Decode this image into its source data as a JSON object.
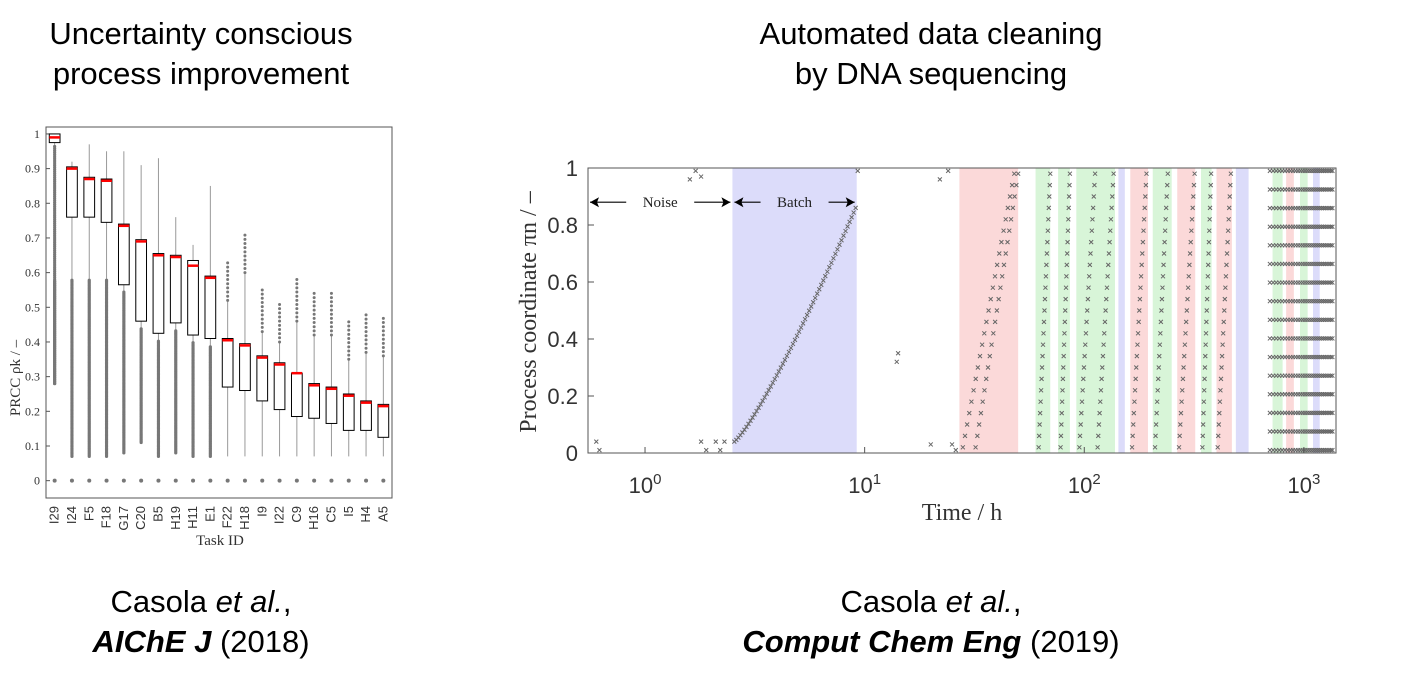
{
  "left": {
    "title_line1": "Uncertainty conscious",
    "title_line2": "process improvement",
    "citation": {
      "authors": "Casola",
      "etal": "et al.",
      "comma": ",",
      "journal": "AIChE J",
      "year": "(2018)"
    }
  },
  "right": {
    "title_line1": "Automated data cleaning",
    "title_line2": "by DNA sequencing",
    "citation": {
      "authors": "Casola",
      "etal": "et al.",
      "comma": ",",
      "journal": "Comput Chem Eng",
      "year": "(2019)"
    }
  },
  "chart_data": [
    {
      "type": "box",
      "xlabel": "Task ID",
      "ylabel": "PRCC ρk / –",
      "ylim": [
        -0.05,
        1.02
      ],
      "yticks": [
        0,
        0.1,
        0.2,
        0.3,
        0.4,
        0.5,
        0.6,
        0.7,
        0.8,
        0.9,
        1
      ],
      "ytick_labels": [
        "0",
        "0.1",
        "0.2",
        "0.3",
        "0.4",
        "0.5",
        "0.6",
        "0.7",
        "0.8",
        "0.9",
        "1"
      ],
      "categories": [
        "I29",
        "I24",
        "F5",
        "F18",
        "G17",
        "C20",
        "B5",
        "H19",
        "H11",
        "E1",
        "F22",
        "H18",
        "I9",
        "I22",
        "C9",
        "H16",
        "C5",
        "I5",
        "H4",
        "A5"
      ],
      "median": [
        0.99,
        0.9,
        0.87,
        0.865,
        0.735,
        0.69,
        0.65,
        0.645,
        0.62,
        0.585,
        0.405,
        0.39,
        0.355,
        0.335,
        0.31,
        0.275,
        0.265,
        0.245,
        0.225,
        0.215
      ],
      "q1": [
        0.975,
        0.76,
        0.76,
        0.745,
        0.565,
        0.46,
        0.425,
        0.455,
        0.42,
        0.41,
        0.27,
        0.26,
        0.23,
        0.205,
        0.185,
        0.18,
        0.165,
        0.145,
        0.145,
        0.125
      ],
      "q3": [
        1.0,
        0.905,
        0.875,
        0.87,
        0.74,
        0.695,
        0.655,
        0.65,
        0.635,
        0.59,
        0.41,
        0.395,
        0.36,
        0.34,
        0.31,
        0.28,
        0.27,
        0.25,
        0.23,
        0.22
      ],
      "whisker_low": [
        0.28,
        0.07,
        0.07,
        0.07,
        0.08,
        0.11,
        0.07,
        0.08,
        0.07,
        0.07,
        0.07,
        0.07,
        0.07,
        0.07,
        0.07,
        0.07,
        0.07,
        0.07,
        0.07,
        0.07
      ],
      "whisker_high": [
        1.0,
        0.92,
        0.97,
        0.95,
        0.95,
        0.91,
        0.93,
        0.76,
        0.68,
        0.85,
        0.52,
        0.6,
        0.43,
        0.4,
        0.46,
        0.42,
        0.42,
        0.35,
        0.37,
        0.36
      ],
      "median_color": "#ff0000",
      "outlier_color": "#777777"
    },
    {
      "type": "scatter",
      "xlabel": "Time / h",
      "ylabel": "Process coordinate πn / –",
      "xscale": "log",
      "xlim": [
        0.55,
        1400
      ],
      "ylim": [
        0,
        1
      ],
      "xticks": [
        1,
        10,
        100,
        1000
      ],
      "xtick_labels": [
        {
          "base": "10",
          "exp": "0"
        },
        {
          "base": "10",
          "exp": "1"
        },
        {
          "base": "10",
          "exp": "2"
        },
        {
          "base": "10",
          "exp": "3"
        }
      ],
      "yticks": [
        0,
        0.2,
        0.4,
        0.6,
        0.8,
        1
      ],
      "ytick_labels": [
        "0",
        "0.2",
        "0.4",
        "0.6",
        "0.8",
        "1"
      ],
      "annotations": [
        {
          "label": "Noise",
          "x_start": 0.55,
          "x_end": 2.5,
          "y": 0.88
        },
        {
          "label": "Batch",
          "x_start": 2.5,
          "x_end": 9.2,
          "y": 0.88
        }
      ],
      "regions": [
        {
          "kind": "batch",
          "x_start": 2.5,
          "x_end": 9.2,
          "color": "#dcdcfa"
        },
        {
          "kind": "red",
          "x_start": 27,
          "x_end": 50,
          "color": "#fbd9d9"
        },
        {
          "kind": "green",
          "x_start": 60,
          "x_end": 70,
          "color": "#d8f5d8"
        },
        {
          "kind": "green",
          "x_start": 76,
          "x_end": 86,
          "color": "#d8f5d8"
        },
        {
          "kind": "green",
          "x_start": 92,
          "x_end": 138,
          "color": "#d8f5d8"
        },
        {
          "kind": "blue",
          "x_start": 143,
          "x_end": 153,
          "color": "#dcdcfa"
        },
        {
          "kind": "red",
          "x_start": 162,
          "x_end": 195,
          "color": "#fbd9d9"
        },
        {
          "kind": "green",
          "x_start": 205,
          "x_end": 250,
          "color": "#d8f5d8"
        },
        {
          "kind": "red",
          "x_start": 265,
          "x_end": 320,
          "color": "#fbd9d9"
        },
        {
          "kind": "green",
          "x_start": 340,
          "x_end": 380,
          "color": "#d8f5d8"
        },
        {
          "kind": "red",
          "x_start": 400,
          "x_end": 470,
          "color": "#fbd9d9"
        },
        {
          "kind": "blue",
          "x_start": 490,
          "x_end": 560,
          "color": "#dcdcfa"
        },
        {
          "kind": "green",
          "x_start": 720,
          "x_end": 800,
          "color": "#d8f5d8"
        },
        {
          "kind": "red",
          "x_start": 830,
          "x_end": 900,
          "color": "#fbd9d9"
        },
        {
          "kind": "green",
          "x_start": 960,
          "x_end": 1040,
          "color": "#d8f5d8"
        },
        {
          "kind": "blue",
          "x_start": 1100,
          "x_end": 1180,
          "color": "#dcdcfa"
        }
      ],
      "marker_color": "#666666"
    }
  ]
}
